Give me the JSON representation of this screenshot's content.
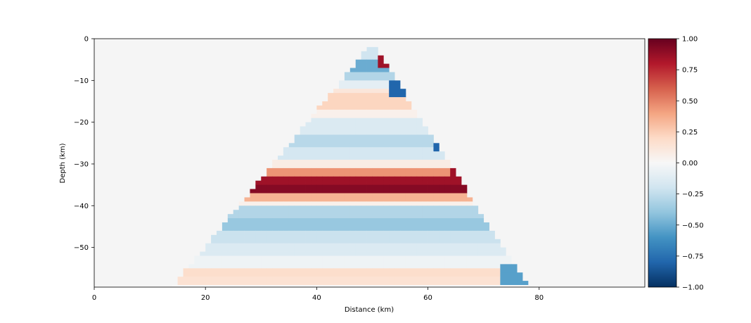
{
  "chart_data": {
    "type": "heatmap",
    "title": "",
    "xlabel": "Distance (km)",
    "ylabel": "Depth (km)",
    "xlim": [
      0,
      99
    ],
    "ylim": [
      -59.5,
      0
    ],
    "x_ticks": [
      0,
      20,
      40,
      60,
      80
    ],
    "y_ticks": [
      0,
      -10,
      -20,
      -30,
      -40,
      -50
    ],
    "x_tick_labels": [
      "0",
      "20",
      "40",
      "60",
      "80"
    ],
    "y_tick_labels": [
      "0",
      "−10",
      "−20",
      "−30",
      "−40",
      "−50"
    ],
    "background_color": "#f5f5f5",
    "colormap": "RdBu_r",
    "colorbar": {
      "range": [
        -1.0,
        1.0
      ],
      "ticks": [
        1.0,
        0.75,
        0.5,
        0.25,
        0.0,
        -0.25,
        -0.5,
        -0.75,
        -1.0
      ],
      "tick_labels": [
        "1.00",
        "0.75",
        "0.50",
        "0.25",
        "0.00",
        "−0.25",
        "−0.50",
        "−0.75",
        "−1.00"
      ],
      "colors": [
        "#053061",
        "#2166ac",
        "#4393c3",
        "#92c5de",
        "#d1e5f0",
        "#f7f7f7",
        "#fddbc7",
        "#f4a582",
        "#d6604d",
        "#b2182b",
        "#67001f"
      ]
    },
    "layers": [
      {
        "depth": [
          1,
          2
        ],
        "value": 0.35
      },
      {
        "depth": [
          2,
          5
        ],
        "value": -0.2
      },
      {
        "depth": [
          5,
          8
        ],
        "value": -0.5
      },
      {
        "depth": [
          8,
          10
        ],
        "value": -0.3
      },
      {
        "depth": [
          10,
          12
        ],
        "value": -0.1
      },
      {
        "depth": [
          12,
          13.5
        ],
        "value": 0.12
      },
      {
        "depth": [
          13.5,
          17
        ],
        "value": 0.22
      },
      {
        "depth": [
          17,
          19
        ],
        "value": 0.05
      },
      {
        "depth": [
          19,
          23
        ],
        "value": -0.15
      },
      {
        "depth": [
          23,
          26
        ],
        "value": -0.28
      },
      {
        "depth": [
          26,
          29
        ],
        "value": -0.18
      },
      {
        "depth": [
          29,
          31
        ],
        "value": 0.08
      },
      {
        "depth": [
          31,
          33
        ],
        "value": 0.45
      },
      {
        "depth": [
          33,
          35
        ],
        "value": 0.85
      },
      {
        "depth": [
          35,
          37.5
        ],
        "value": 0.92
      },
      {
        "depth": [
          37.5,
          39
        ],
        "value": 0.35
      },
      {
        "depth": [
          39,
          40
        ],
        "value": 0.05
      },
      {
        "depth": [
          40,
          43
        ],
        "value": -0.3
      },
      {
        "depth": [
          43,
          46
        ],
        "value": -0.38
      },
      {
        "depth": [
          46,
          49
        ],
        "value": -0.22
      },
      {
        "depth": [
          49,
          52
        ],
        "value": -0.15
      },
      {
        "depth": [
          52,
          55
        ],
        "value": -0.05
      },
      {
        "depth": [
          55,
          57
        ],
        "value": 0.18
      },
      {
        "depth": [
          57,
          59.5
        ],
        "value": 0.15
      }
    ],
    "anomalies": [
      {
        "x": [
          51,
          54
        ],
        "depth": [
          3,
          7
        ],
        "value": 0.85
      },
      {
        "x": [
          53,
          56
        ],
        "depth": [
          10,
          14
        ],
        "value": -0.8
      },
      {
        "x": [
          61,
          63
        ],
        "depth": [
          24,
          27
        ],
        "value": -0.8
      },
      {
        "x": [
          64,
          67
        ],
        "depth": [
          31,
          35
        ],
        "value": 0.85
      },
      {
        "x": [
          67,
          69
        ],
        "depth": [
          35,
          38
        ],
        "value": 0.6
      },
      {
        "x": [
          73,
          78
        ],
        "depth": [
          54,
          59
        ],
        "value": -0.55
      }
    ]
  }
}
